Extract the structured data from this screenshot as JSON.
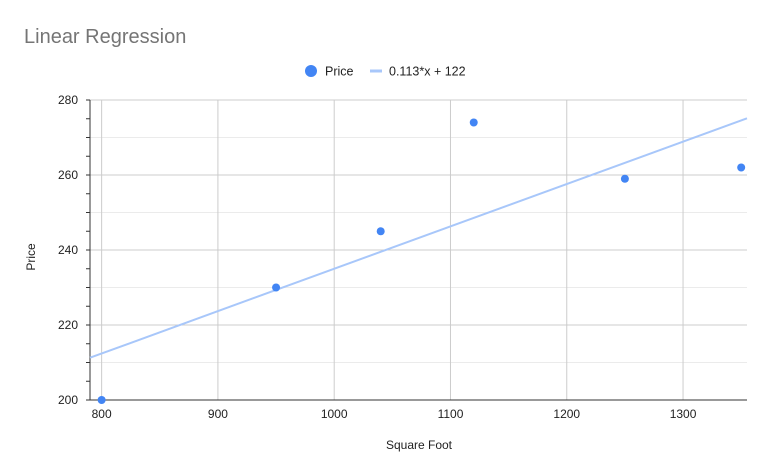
{
  "chart_data": {
    "type": "scatter",
    "title": "Linear Regression",
    "xlabel": "Square Foot",
    "ylabel": "Price",
    "xlim": [
      790,
      1355
    ],
    "ylim": [
      200,
      280
    ],
    "x_ticks": [
      800,
      900,
      1000,
      1100,
      1200,
      1300
    ],
    "y_ticks": [
      200,
      220,
      240,
      260,
      280
    ],
    "grid": true,
    "legend_position": "top-center",
    "series": [
      {
        "name": "Price",
        "kind": "scatter",
        "color": "#4285f4",
        "points": [
          {
            "x": 800,
            "y": 200
          },
          {
            "x": 950,
            "y": 230
          },
          {
            "x": 1040,
            "y": 245
          },
          {
            "x": 1120,
            "y": 274
          },
          {
            "x": 1250,
            "y": 259
          },
          {
            "x": 1350,
            "y": 262
          }
        ]
      },
      {
        "name": "0.113*x + 122",
        "kind": "trendline",
        "color": "#a8c7fa",
        "slope": 0.113,
        "intercept": 122
      }
    ]
  }
}
